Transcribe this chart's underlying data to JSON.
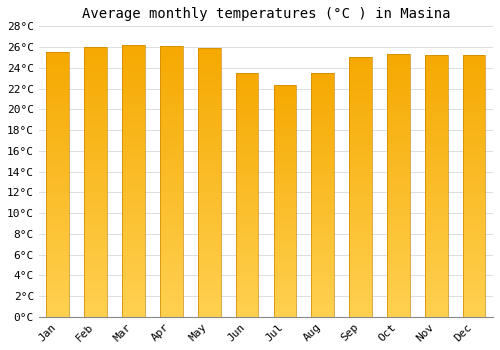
{
  "title": "Average monthly temperatures (°C ) in Masina",
  "months": [
    "Jan",
    "Feb",
    "Mar",
    "Apr",
    "May",
    "Jun",
    "Jul",
    "Aug",
    "Sep",
    "Oct",
    "Nov",
    "Dec"
  ],
  "values": [
    25.5,
    26.0,
    26.2,
    26.1,
    25.9,
    23.5,
    22.3,
    23.5,
    25.0,
    25.3,
    25.2,
    25.2
  ],
  "bar_color_top": "#F5A800",
  "bar_color_bottom": "#FFD050",
  "background_color": "#FFFFFF",
  "plot_bg_color": "#FFFFFF",
  "grid_color": "#DDDDDD",
  "ylim": [
    0,
    28
  ],
  "ytick_step": 2,
  "title_fontsize": 10,
  "tick_fontsize": 8,
  "font_family": "monospace"
}
